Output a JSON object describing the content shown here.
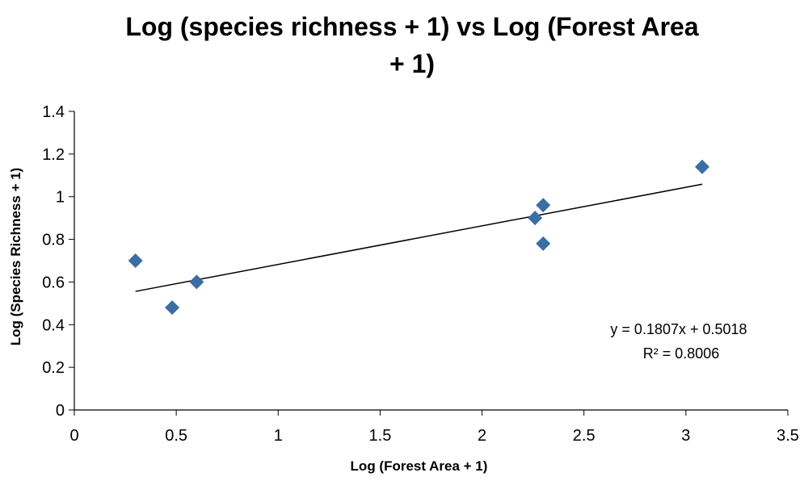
{
  "chart_data": {
    "type": "scatter",
    "title_line1": "Log (species richness + 1) vs Log (Forest Area",
    "title_line2": "+ 1)",
    "xlabel": "Log (Forest Area + 1)",
    "ylabel": "Log (Species Richness + 1)",
    "xlim": [
      0,
      3.5
    ],
    "ylim": [
      0,
      1.4
    ],
    "x_ticks": [
      "0",
      "0.5",
      "1",
      "1.5",
      "2",
      "2.5",
      "3",
      "3.5"
    ],
    "y_ticks": [
      "0",
      "0.2",
      "0.4",
      "0.6",
      "0.8",
      "1",
      "1.2",
      "1.4"
    ],
    "marker_color": "#3a6ea5",
    "points": [
      {
        "x": 0.3,
        "y": 0.7
      },
      {
        "x": 0.48,
        "y": 0.48
      },
      {
        "x": 0.6,
        "y": 0.6
      },
      {
        "x": 2.26,
        "y": 0.9
      },
      {
        "x": 2.3,
        "y": 0.96
      },
      {
        "x": 2.3,
        "y": 0.78
      },
      {
        "x": 3.08,
        "y": 1.14
      }
    ],
    "trendline": {
      "slope": 0.1807,
      "intercept": 0.5018,
      "x_start": 0.3,
      "x_end": 3.08
    },
    "equation_text": "y = 0.1807x + 0.5018",
    "r2_text": "R² = 0.8006"
  }
}
